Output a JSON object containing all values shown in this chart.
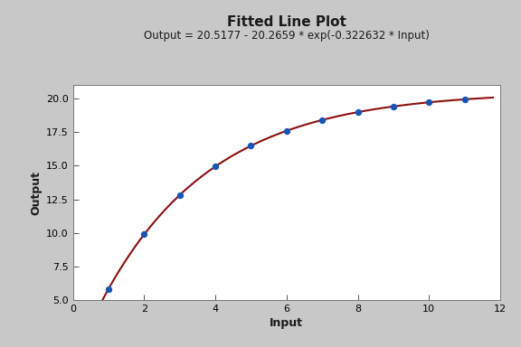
{
  "title": "Fitted Line Plot",
  "subtitle": "Output = 20.5177 - 20.2659 * exp(-0.322632 * Input)",
  "xlabel": "Input",
  "ylabel": "Output",
  "a": 20.5177,
  "b": 20.2659,
  "c": 0.322632,
  "x_data": [
    1,
    2,
    3,
    4,
    5,
    6,
    7,
    8,
    9,
    10,
    11
  ],
  "xlim": [
    0,
    12
  ],
  "ylim": [
    5.0,
    21.0
  ],
  "xticks": [
    0,
    2,
    4,
    6,
    8,
    10,
    12
  ],
  "yticks": [
    5.0,
    7.5,
    10.0,
    12.5,
    15.0,
    17.5,
    20.0
  ],
  "dot_color": "#1755B5",
  "line_color": "#8B1010",
  "bg_outer": "#C8C8C8",
  "bg_inner": "#FFFFFF",
  "title_fontsize": 11,
  "subtitle_fontsize": 8.5,
  "axis_label_fontsize": 9,
  "tick_fontsize": 8
}
